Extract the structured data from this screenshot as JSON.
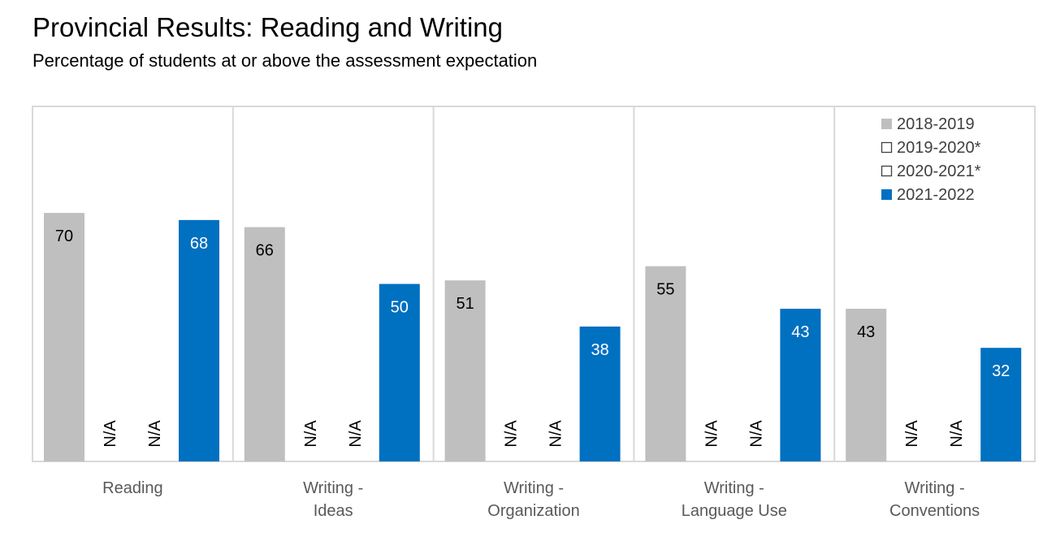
{
  "page": {
    "title": "Provincial Results: Reading and Writing",
    "subtitle": "Percentage of students at or above the assessment expectation"
  },
  "chart_data": {
    "type": "bar",
    "title": "Provincial Results: Reading and Writing",
    "subtitle": "Percentage of students at or above the assessment expectation",
    "xlabel": "",
    "ylabel": "",
    "ylim": [
      0,
      85
    ],
    "grid": false,
    "legend_position": "top-right",
    "categories": [
      [
        "Reading"
      ],
      [
        "Writing -",
        "Ideas"
      ],
      [
        "Writing -",
        "Organization"
      ],
      [
        "Writing -",
        "Language Use"
      ],
      [
        "Writing -",
        "Conventions"
      ]
    ],
    "series": [
      {
        "name": "2018-2019",
        "color": "#bfbfbf",
        "label_color": "#000000",
        "style": "filled",
        "values": [
          70,
          66,
          51,
          55,
          43
        ],
        "labels": [
          "70",
          "66",
          "51",
          "55",
          "43"
        ]
      },
      {
        "name": "2019-2020*",
        "color": "#ffffff",
        "label_color": "#000000",
        "style": "outline",
        "values": [
          null,
          null,
          null,
          null,
          null
        ],
        "labels": [
          "N/A",
          "N/A",
          "N/A",
          "N/A",
          "N/A"
        ]
      },
      {
        "name": "2020-2021*",
        "color": "#ffffff",
        "label_color": "#000000",
        "style": "outline",
        "values": [
          null,
          null,
          null,
          null,
          null
        ],
        "labels": [
          "N/A",
          "N/A",
          "N/A",
          "N/A",
          "N/A"
        ]
      },
      {
        "name": "2021-2022",
        "color": "#0070c0",
        "label_color": "#ffffff",
        "style": "filled",
        "values": [
          68,
          50,
          38,
          43,
          32
        ],
        "labels": [
          "68",
          "50",
          "38",
          "43",
          "32"
        ]
      }
    ]
  }
}
